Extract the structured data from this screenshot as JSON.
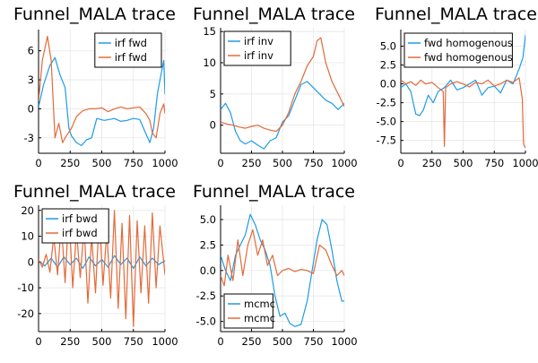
{
  "colors": {
    "series1": "#1f9be6",
    "series2": "#e26a3a",
    "grid": "#e6e6e6",
    "axis": "#000000",
    "legend_border": "#000000"
  },
  "chart_data": [
    {
      "type": "line",
      "title": "Funnel_MALA trace",
      "xlim": [
        0,
        1000
      ],
      "ylim": [
        -4.6,
        8.2
      ],
      "xticks": [
        0,
        250,
        500,
        750,
        1000
      ],
      "yticks": [
        -3,
        0,
        3,
        6
      ],
      "legend": "top-right",
      "grid": true,
      "series": [
        {
          "name": "irf fwd",
          "x": [
            0,
            40,
            90,
            130,
            170,
            210,
            240,
            260,
            300,
            340,
            380,
            420,
            460,
            520,
            560,
            600,
            650,
            700,
            750,
            800,
            850,
            880,
            910,
            940,
            960,
            990,
            1000
          ],
          "values": [
            0.2,
            2.5,
            4.5,
            5.3,
            3.5,
            2.2,
            -2.0,
            -2.8,
            -3.5,
            -3.8,
            -3.2,
            -3.0,
            -1.0,
            -1.2,
            -1.1,
            -1.0,
            -1.3,
            -1.2,
            -1.0,
            -1.1,
            -2.6,
            -3.5,
            -2.0,
            1.5,
            3.0,
            5.0,
            1.5
          ]
        },
        {
          "name": "irf fwd",
          "x": [
            0,
            30,
            70,
            100,
            130,
            160,
            190,
            220,
            260,
            300,
            350,
            400,
            450,
            500,
            550,
            600,
            650,
            700,
            750,
            800,
            850,
            880,
            900,
            930,
            960,
            990,
            1000
          ],
          "values": [
            0.8,
            5.0,
            7.5,
            5.0,
            -3.0,
            -1.5,
            -3.5,
            -2.8,
            -2.0,
            -0.8,
            -0.2,
            0.0,
            0.0,
            0.1,
            -0.3,
            0.0,
            0.2,
            0.0,
            0.1,
            0.2,
            -0.5,
            -1.2,
            -2.5,
            -3.0,
            -0.5,
            0.5,
            -0.5
          ]
        }
      ]
    },
    {
      "type": "line",
      "title": "Funnel_MALA trace",
      "xlim": [
        0,
        1000
      ],
      "ylim": [
        -4.5,
        15.6
      ],
      "xticks": [
        0,
        250,
        500,
        750,
        1000
      ],
      "yticks": [
        0,
        5,
        10,
        15
      ],
      "legend": "top-left",
      "grid": true,
      "series": [
        {
          "name": "irf inv",
          "x": [
            0,
            40,
            80,
            120,
            160,
            200,
            250,
            300,
            350,
            400,
            450,
            500,
            550,
            600,
            650,
            700,
            750,
            800,
            850,
            900,
            950,
            1000
          ],
          "values": [
            2.5,
            3.5,
            2.0,
            -1.0,
            -2.5,
            -3.0,
            -2.5,
            -3.2,
            -3.8,
            -2.5,
            -2.0,
            0.5,
            1.5,
            4.0,
            6.5,
            7.0,
            6.0,
            5.0,
            4.0,
            3.5,
            2.5,
            3.5
          ]
        },
        {
          "name": "irf inv",
          "x": [
            0,
            50,
            100,
            150,
            200,
            250,
            300,
            350,
            400,
            450,
            500,
            550,
            600,
            650,
            700,
            750,
            780,
            810,
            850,
            900,
            950,
            1000
          ],
          "values": [
            0.5,
            0.2,
            0.0,
            -0.3,
            -0.5,
            -0.2,
            0.0,
            -0.5,
            -0.8,
            -1.0,
            0.0,
            2.0,
            5.0,
            7.0,
            9.5,
            11.0,
            13.5,
            14.0,
            10.0,
            7.0,
            5.0,
            3.0
          ]
        }
      ]
    },
    {
      "type": "line",
      "title": "Funnel_MALA trace",
      "xlim": [
        0,
        1000
      ],
      "ylim": [
        -9.2,
        7.2
      ],
      "xticks": [
        0,
        250,
        500,
        750,
        1000
      ],
      "yticks": [
        5.0,
        2.5,
        0.0,
        -2.5,
        -5.0,
        -7.5
      ],
      "legend": "top-left",
      "grid": true,
      "series": [
        {
          "name": "fwd homogenous",
          "x": [
            0,
            40,
            80,
            120,
            150,
            180,
            220,
            260,
            300,
            350,
            400,
            450,
            500,
            550,
            600,
            650,
            700,
            750,
            800,
            850,
            900,
            950,
            980,
            1000
          ],
          "values": [
            -0.5,
            0.0,
            -1.0,
            -4.0,
            -4.2,
            -3.5,
            -1.5,
            -2.5,
            -1.0,
            -0.5,
            0.5,
            -0.8,
            -0.5,
            0.0,
            0.5,
            -1.5,
            -0.5,
            -0.3,
            -1.2,
            0.5,
            0.0,
            2.0,
            3.5,
            6.5
          ]
        },
        {
          "name": "fwd homogenous",
          "x": [
            0,
            40,
            80,
            120,
            160,
            200,
            250,
            300,
            340,
            350,
            360,
            400,
            450,
            500,
            550,
            600,
            650,
            700,
            750,
            800,
            850,
            900,
            950,
            975,
            985,
            1000
          ],
          "values": [
            0.5,
            0.0,
            0.3,
            -0.2,
            0.5,
            0.0,
            0.2,
            -0.5,
            -1.0,
            -8.3,
            -0.5,
            0.0,
            0.3,
            0.0,
            -0.4,
            0.2,
            0.0,
            0.5,
            -0.3,
            0.0,
            0.5,
            0.2,
            0.8,
            -2.0,
            -8.0,
            -8.5
          ]
        }
      ]
    },
    {
      "type": "line",
      "title": "Funnel_MALA trace",
      "xlim": [
        0,
        1000
      ],
      "ylim": [
        -27,
        22
      ],
      "xticks": [
        0,
        250,
        500,
        750,
        1000
      ],
      "yticks": [
        -20,
        -10,
        0,
        10,
        20
      ],
      "legend": "top-left",
      "grid": true,
      "series": [
        {
          "name": "irf bwd",
          "x": [
            0,
            50,
            100,
            150,
            200,
            250,
            300,
            350,
            400,
            450,
            500,
            550,
            600,
            650,
            700,
            750,
            800,
            850,
            900,
            950,
            1000
          ],
          "values": [
            0.5,
            -1.5,
            1.5,
            -2.0,
            2.0,
            -1.0,
            1.5,
            -2.5,
            2.0,
            -1.5,
            1.0,
            -2.0,
            2.5,
            -1.0,
            1.5,
            -2.5,
            2.0,
            -1.5,
            1.5,
            -1.0,
            0.5
          ]
        },
        {
          "name": "irf bwd",
          "x": [
            0,
            30,
            60,
            90,
            120,
            150,
            180,
            210,
            240,
            270,
            300,
            330,
            360,
            390,
            420,
            450,
            480,
            510,
            540,
            570,
            600,
            630,
            660,
            690,
            720,
            750,
            780,
            810,
            840,
            870,
            900,
            930,
            960,
            1000
          ],
          "values": [
            1.0,
            -2.0,
            3.0,
            -4.0,
            10.0,
            -5.0,
            15.0,
            -8.0,
            20.0,
            -10.0,
            12.0,
            -6.0,
            14.0,
            -16.0,
            10.0,
            -12.0,
            18.0,
            -9.0,
            12.0,
            -14.0,
            20.0,
            -18.0,
            15.0,
            -22.0,
            18.0,
            -25.0,
            16.0,
            -12.0,
            14.0,
            -16.0,
            19.0,
            -10.0,
            14.0,
            -5.0
          ]
        }
      ]
    },
    {
      "type": "line",
      "title": "Funnel_MALA trace",
      "xlim": [
        0,
        1000
      ],
      "ylim": [
        -6.0,
        6.4
      ],
      "xticks": [
        0,
        250,
        500,
        750,
        1000
      ],
      "yticks": [
        5.0,
        2.5,
        0.0,
        -2.5,
        -5.0
      ],
      "legend": "bottom-left",
      "grid": true,
      "series": [
        {
          "name": "mcmc",
          "x": [
            0,
            40,
            80,
            120,
            160,
            200,
            240,
            280,
            320,
            360,
            400,
            440,
            480,
            520,
            560,
            600,
            650,
            700,
            740,
            780,
            820,
            860,
            900,
            940,
            980,
            1000
          ],
          "values": [
            1.5,
            0.0,
            -1.0,
            1.5,
            2.5,
            3.5,
            5.5,
            4.5,
            3.0,
            2.0,
            0.5,
            -2.5,
            -4.5,
            -4.2,
            -5.2,
            -5.5,
            -5.3,
            -3.0,
            0.0,
            3.0,
            5.0,
            4.5,
            2.0,
            -1.0,
            -3.0,
            -3.0
          ]
        },
        {
          "name": "mcmc",
          "x": [
            0,
            30,
            60,
            100,
            140,
            180,
            220,
            260,
            300,
            340,
            380,
            420,
            460,
            500,
            550,
            600,
            650,
            700,
            750,
            800,
            850,
            900,
            940,
            980,
            1000
          ],
          "values": [
            -0.5,
            -1.5,
            1.5,
            -1.0,
            3.0,
            -0.5,
            2.5,
            4.0,
            1.5,
            3.0,
            0.5,
            1.5,
            -0.5,
            0.0,
            0.2,
            -0.1,
            0.1,
            0.0,
            -0.3,
            2.5,
            2.0,
            0.5,
            -0.5,
            0.0,
            -0.5
          ]
        }
      ]
    }
  ]
}
